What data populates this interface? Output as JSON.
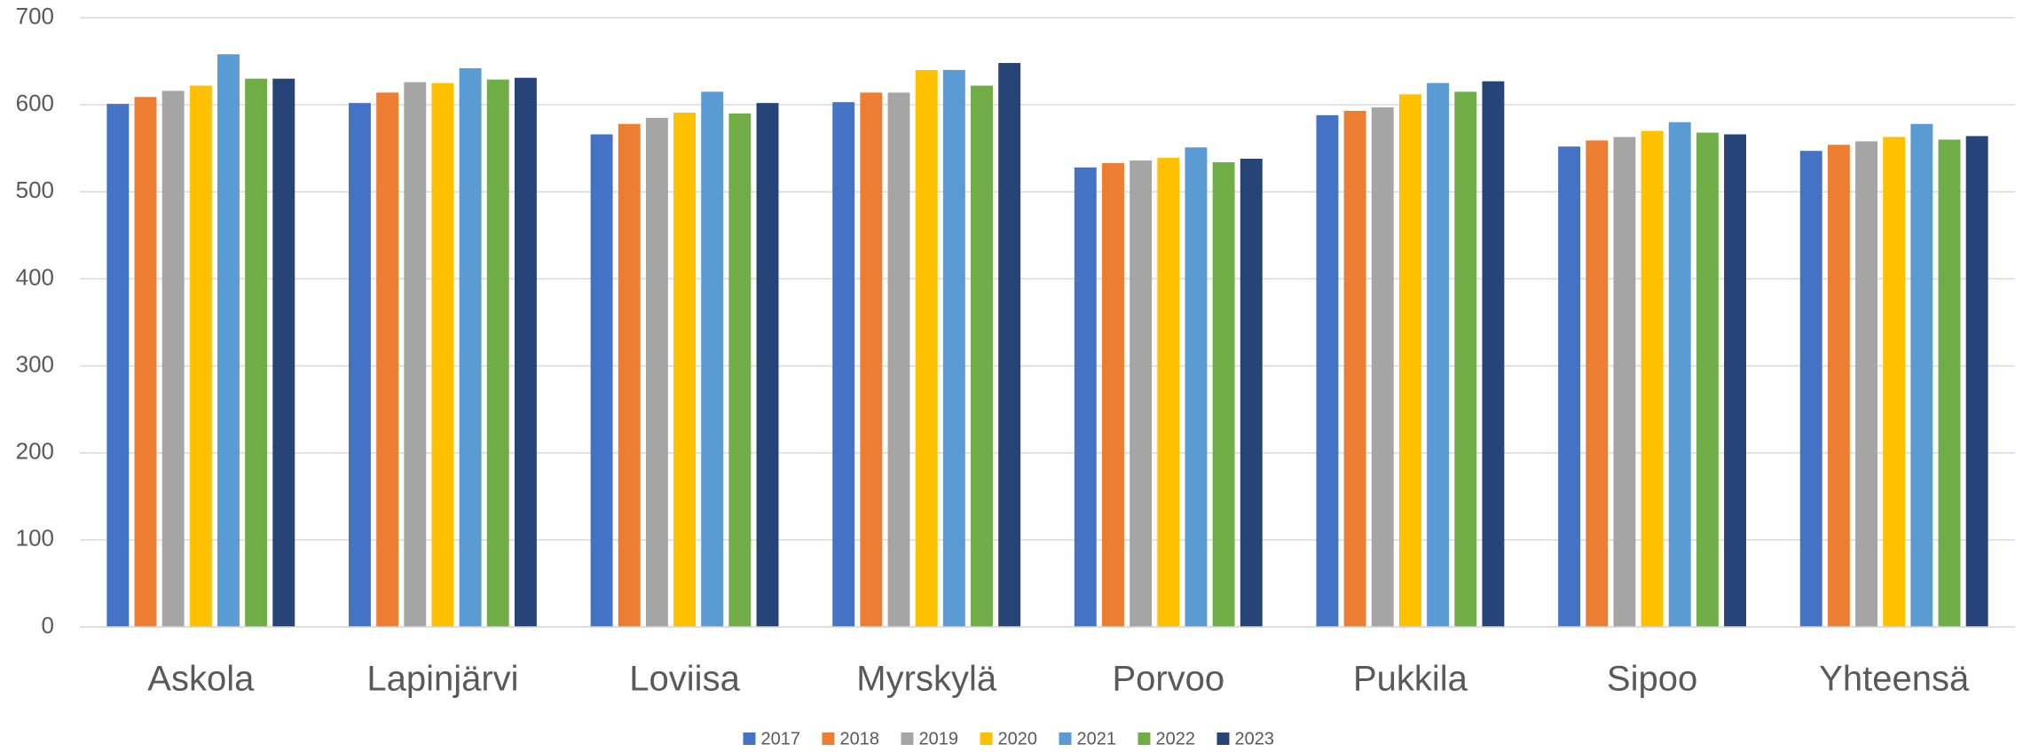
{
  "chart_data": {
    "type": "bar",
    "categories": [
      "Askola",
      "Lapinjärvi",
      "Loviisa",
      "Myrskylä",
      "Porvoo",
      "Pukkila",
      "Sipoo",
      "Yhteensä"
    ],
    "series": [
      {
        "name": "2017",
        "color": "#4472c4",
        "values": [
          601,
          602,
          566,
          603,
          528,
          588,
          552,
          547
        ]
      },
      {
        "name": "2018",
        "color": "#ed7d31",
        "values": [
          609,
          614,
          578,
          614,
          533,
          593,
          559,
          554
        ]
      },
      {
        "name": "2019",
        "color": "#a5a5a5",
        "values": [
          616,
          626,
          585,
          614,
          536,
          597,
          563,
          558
        ]
      },
      {
        "name": "2020",
        "color": "#ffc000",
        "values": [
          622,
          625,
          591,
          640,
          539,
          612,
          570,
          563
        ]
      },
      {
        "name": "2021",
        "color": "#5b9bd5",
        "values": [
          658,
          642,
          615,
          640,
          551,
          625,
          580,
          578
        ]
      },
      {
        "name": "2022",
        "color": "#70ad47",
        "values": [
          630,
          629,
          590,
          622,
          534,
          615,
          568,
          560
        ]
      },
      {
        "name": "2023",
        "color": "#264478",
        "values": [
          630,
          631,
          602,
          648,
          538,
          627,
          566,
          564
        ]
      }
    ],
    "ylim": [
      0,
      700
    ],
    "yticks": [
      0,
      100,
      200,
      300,
      400,
      500,
      600,
      700
    ],
    "grid": true,
    "legend": "bottom"
  }
}
